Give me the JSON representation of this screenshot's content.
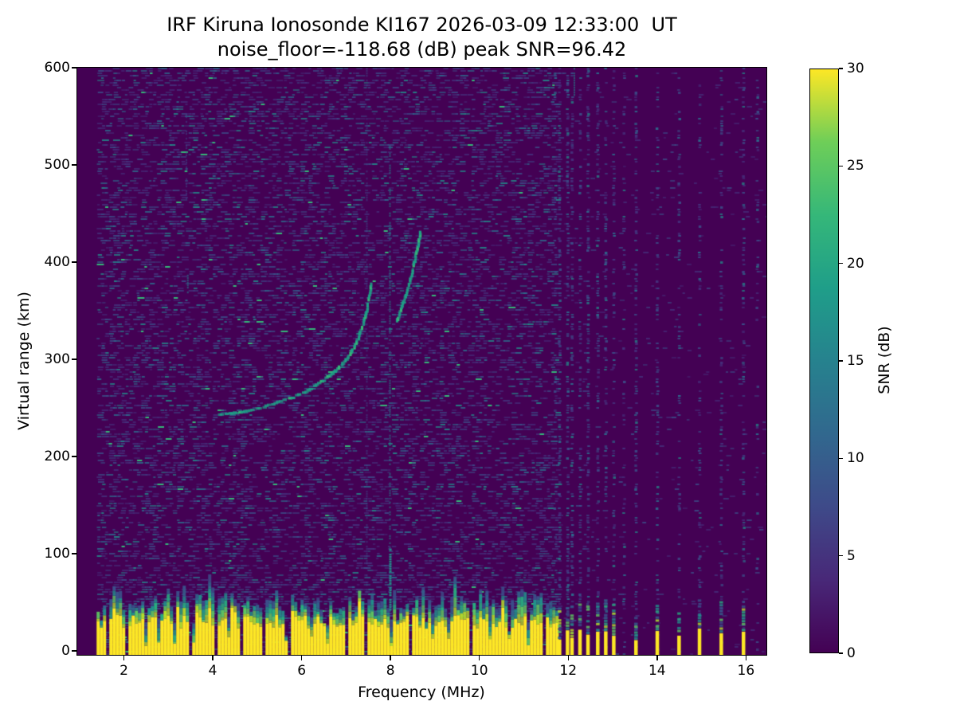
{
  "figure": {
    "title_line1": "IRF Kiruna Ionosonde KI167 2026-03-09 12:33:00  UT",
    "title_line2": "noise_floor=-118.68 (dB) peak SNR=96.42",
    "background": "#ffffff"
  },
  "chart_data": {
    "type": "heatmap",
    "title": "IRF Kiruna Ionosonde KI167 2026-03-09 12:33:00  UT",
    "subtitle": "noise_floor=-118.68 (dB) peak SNR=96.42",
    "station": "IRF Kiruna Ionosonde KI167",
    "timestamp_ut": "2026-03-09 12:33:00",
    "noise_floor_db": -118.68,
    "peak_snr_db": 96.42,
    "xlabel": "Frequency (MHz)",
    "ylabel": "Virtual range (km)",
    "xlim": [
      0.95,
      16.46
    ],
    "ylim": [
      -4,
      600
    ],
    "x_ticks": [
      2,
      4,
      6,
      8,
      10,
      12,
      14,
      16
    ],
    "y_ticks": [
      0,
      100,
      200,
      300,
      400,
      500,
      600
    ],
    "grid": false,
    "colorbar": {
      "label": "SNR (dB)",
      "ticks": [
        0,
        5,
        10,
        15,
        20,
        25,
        30
      ],
      "vmin": 0,
      "vmax": 30,
      "colormap": "viridis",
      "stops": [
        "#440154",
        "#482878",
        "#3e4a89",
        "#31688e",
        "#26828e",
        "#1f9e89",
        "#35b779",
        "#6ece58",
        "#fde725"
      ]
    },
    "features": {
      "blank_band_mhz": [
        0.95,
        1.385
      ],
      "ground_clutter": {
        "freq_range_mhz": [
          1.385,
          11.76
        ],
        "top_km_range": [
          25,
          40
        ]
      },
      "clutter_notches_mhz": [
        1.62,
        2.04,
        2.45,
        2.73,
        3.1,
        3.5,
        4.03,
        4.35,
        4.61,
        5.11,
        5.65,
        6.19,
        6.53,
        7.0,
        7.39,
        7.98,
        8.43,
        8.9,
        9.3,
        9.75,
        10.2,
        10.65,
        11.05,
        11.45
      ],
      "rfi_channels": [
        {
          "mhz": 11.7,
          "strength": 0.45,
          "ground": false
        },
        {
          "mhz": 11.8,
          "strength": 0.85,
          "ground": true
        },
        {
          "mhz": 11.98,
          "strength": 0.9,
          "ground": true
        },
        {
          "mhz": 12.08,
          "strength": 0.75,
          "ground": true
        },
        {
          "mhz": 12.26,
          "strength": 0.85,
          "ground": true
        },
        {
          "mhz": 12.44,
          "strength": 0.8,
          "ground": true
        },
        {
          "mhz": 12.66,
          "strength": 0.7,
          "ground": true
        },
        {
          "mhz": 12.84,
          "strength": 0.65,
          "ground": true
        },
        {
          "mhz": 13.02,
          "strength": 0.6,
          "ground": true
        },
        {
          "mhz": 13.25,
          "strength": 0.3,
          "ground": false
        },
        {
          "mhz": 13.52,
          "strength": 0.65,
          "ground": true
        },
        {
          "mhz": 14.0,
          "strength": 0.6,
          "ground": true
        },
        {
          "mhz": 14.49,
          "strength": 0.55,
          "ground": true
        },
        {
          "mhz": 14.95,
          "strength": 0.55,
          "ground": true
        },
        {
          "mhz": 15.44,
          "strength": 0.5,
          "ground": true
        },
        {
          "mhz": 15.94,
          "strength": 0.55,
          "ground": true
        },
        {
          "mhz": 16.25,
          "strength": 0.25,
          "ground": false
        }
      ],
      "echo_trace_o_mode": [
        [
          4.15,
          243
        ],
        [
          4.35,
          244
        ],
        [
          4.55,
          245
        ],
        [
          4.78,
          247
        ],
        [
          5.0,
          249
        ],
        [
          5.2,
          252
        ],
        [
          5.42,
          255
        ],
        [
          5.62,
          258
        ],
        [
          5.85,
          262
        ],
        [
          6.05,
          266
        ],
        [
          6.25,
          271
        ],
        [
          6.45,
          277
        ],
        [
          6.65,
          284
        ],
        [
          6.85,
          292
        ],
        [
          7.02,
          301
        ],
        [
          7.18,
          312
        ],
        [
          7.3,
          325
        ],
        [
          7.4,
          339
        ],
        [
          7.48,
          353
        ],
        [
          7.54,
          367
        ],
        [
          7.58,
          380
        ]
      ],
      "echo_trace_x_mode": [
        [
          8.15,
          340
        ],
        [
          8.24,
          351
        ],
        [
          8.33,
          363
        ],
        [
          8.42,
          377
        ],
        [
          8.5,
          392
        ],
        [
          8.57,
          407
        ],
        [
          8.63,
          420
        ],
        [
          8.69,
          433
        ]
      ],
      "interference_lines": [
        {
          "mhz": 7.45,
          "km": [
            60,
            600
          ],
          "level": "faint"
        },
        {
          "mhz": 7.97,
          "km": [
            105,
            520
          ],
          "level": "medium"
        },
        {
          "mhz": 7.97,
          "km": [
            42,
            105
          ],
          "level": "bright"
        },
        {
          "mhz": 3.39,
          "km": [
            455,
            560
          ],
          "level": "faint"
        },
        {
          "mhz": 3.42,
          "km": [
            368,
            392
          ],
          "level": "medium"
        },
        {
          "mhz": 12.12,
          "km": [
            570,
            600
          ],
          "level": "medium"
        }
      ]
    },
    "palette": {
      "background": "#440154",
      "noise_faint": "#45327e",
      "noise_blue": "#3b518b",
      "noise_cyan": "#2c6e8e",
      "noise_teal": "#21918c",
      "trace": "#1fa187",
      "trace_bright": "#35b779",
      "clutter": "#fde725",
      "transition": [
        "#b5de2b",
        "#5ec962",
        "#28ae80",
        "#21918c",
        "#33638d",
        "#3b518b"
      ]
    }
  }
}
